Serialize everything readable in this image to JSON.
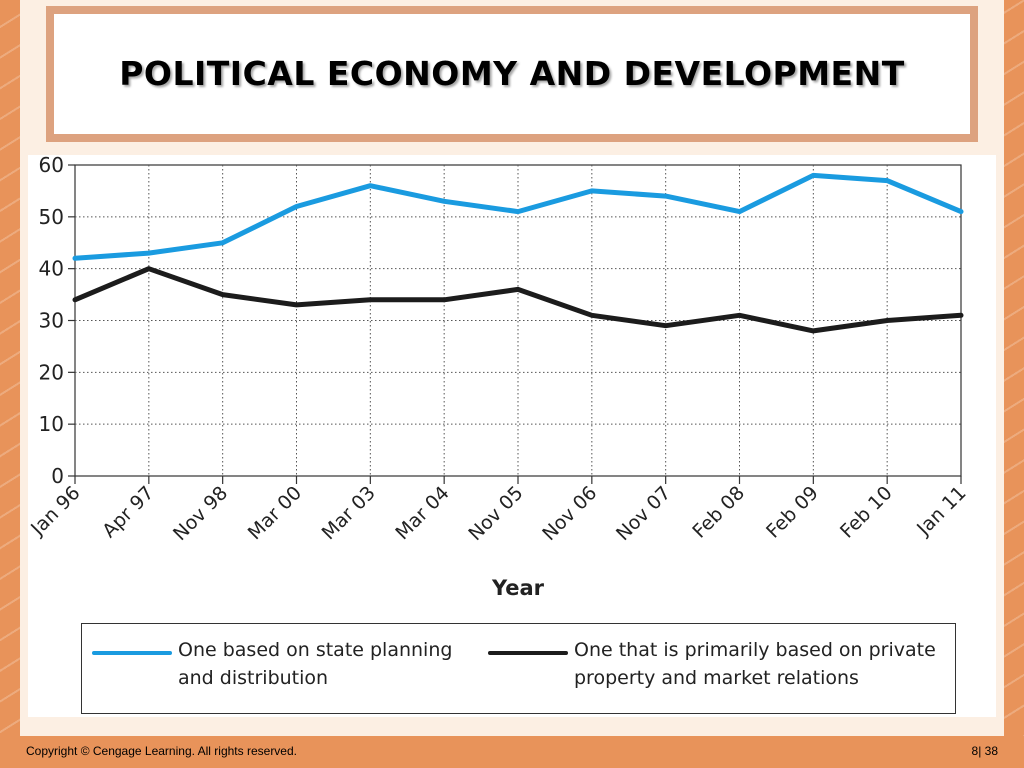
{
  "slide": {
    "title": "POLITICAL ECONOMY AND DEVELOPMENT",
    "footer": {
      "copyright": "Copyright © Cengage Learning. All rights reserved.",
      "page": "8| 38"
    }
  },
  "chart_data": {
    "type": "line",
    "title": "",
    "xlabel": "Year",
    "ylabel": "",
    "ylim": [
      0,
      60
    ],
    "yticks": [
      0,
      10,
      20,
      30,
      40,
      50,
      60
    ],
    "categories": [
      "Jan 96",
      "Apr 97",
      "Nov 98",
      "Mar 00",
      "Mar 03",
      "Mar 04",
      "Nov 05",
      "Nov 06",
      "Nov 07",
      "Feb 08",
      "Feb 09",
      "Feb 10",
      "Jan 11"
    ],
    "grid": true,
    "legend": "bottom",
    "series": [
      {
        "name": "One based on state planning and distribution",
        "name_lines": [
          "One based on state planning",
          "and distribution"
        ],
        "color": "#1a9be0",
        "values": [
          42,
          43,
          45,
          52,
          56,
          53,
          51,
          55,
          54,
          51,
          58,
          57,
          51
        ]
      },
      {
        "name": "One that is primarily based on private property and market relations",
        "name_lines": [
          "One that is primarily based on private",
          "property and market relations"
        ],
        "color": "#1c1c1c",
        "values": [
          34,
          40,
          35,
          33,
          34,
          34,
          36,
          31,
          29,
          31,
          28,
          30,
          31
        ]
      }
    ]
  }
}
